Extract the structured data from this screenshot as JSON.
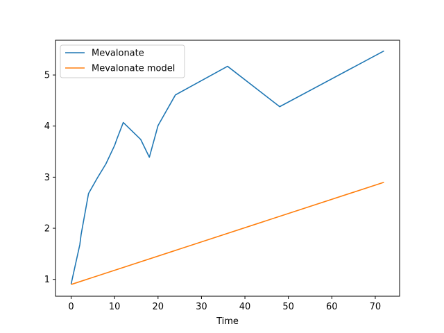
{
  "chart_data": {
    "type": "line",
    "title": "",
    "xlabel": "Time",
    "ylabel": "",
    "xlim": [
      -3.6,
      75.6
    ],
    "ylim": [
      0.67,
      5.68
    ],
    "xticks": [
      0,
      10,
      20,
      30,
      40,
      50,
      60,
      70
    ],
    "yticks": [
      1,
      2,
      3,
      4,
      5
    ],
    "grid": false,
    "legend_position": "upper-left",
    "series": [
      {
        "name": "Mevalonate",
        "color": "#1f77b4",
        "x": [
          0,
          2,
          2.3,
          4,
          6,
          8,
          10,
          10.5,
          12,
          16,
          18,
          20,
          24,
          36,
          48,
          72
        ],
        "y": [
          0.91,
          1.68,
          1.88,
          2.68,
          2.98,
          3.26,
          3.62,
          3.74,
          4.07,
          3.74,
          3.39,
          4.01,
          4.61,
          5.17,
          4.38,
          5.47
        ]
      },
      {
        "name": "Mevalonate model",
        "color": "#ff7f0e",
        "x": [
          0,
          72
        ],
        "y": [
          0.9,
          2.9
        ]
      }
    ]
  }
}
